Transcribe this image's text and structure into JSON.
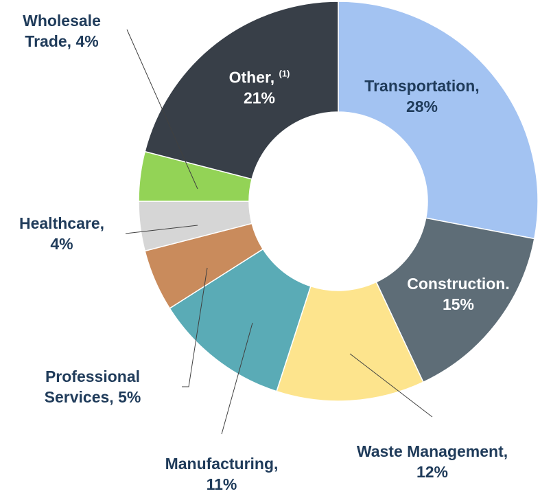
{
  "chart_data": {
    "type": "donut",
    "categories": [
      "Transportation,",
      "Construction.",
      "Waste Management,",
      "Manufacturing,",
      "Professional Services,",
      "Healthcare,",
      "Wholesale Trade,",
      "Other,"
    ],
    "values": [
      28,
      15,
      12,
      11,
      5,
      4,
      4,
      21
    ],
    "value_labels": [
      "28%",
      "15%",
      "12%",
      "11%",
      "5%",
      "4%",
      "4%",
      "21%"
    ],
    "colors": [
      "#a3c3f2",
      "#5e6d77",
      "#fde48d",
      "#5aabb6",
      "#c98b5c",
      "#d6d6d6",
      "#93d356",
      "#383f48"
    ],
    "other_footnote": "(1)"
  }
}
